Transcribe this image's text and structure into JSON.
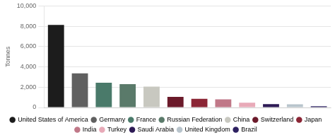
{
  "chart_data": {
    "type": "bar",
    "categories": [
      "United States of America",
      "Germany",
      "France",
      "Russian Federation",
      "China",
      "Switzerland",
      "Japan",
      "India",
      "Turkey",
      "Saudi Arabia",
      "United Kingdom",
      "Brazil"
    ],
    "values": [
      8133,
      3352,
      2436,
      2299,
      2050,
      1040,
      846,
      800,
      471,
      323,
      310,
      130
    ],
    "colors": [
      "#1c1c1c",
      "#606060",
      "#4a7a6a",
      "#5a7a6a",
      "#c8c8c0",
      "#6b1a2a",
      "#8b2535",
      "#c07888",
      "#e8aab8",
      "#2d1a55",
      "#b8c4cc",
      "#2d2060"
    ],
    "ylabel": "Tonnes",
    "ylim": [
      0,
      10000
    ],
    "yticks": [
      0,
      {
        "value": 2000,
        "label": "2,000"
      },
      {
        "value": 4000,
        "label": "4,000"
      },
      {
        "value": 6000,
        "label": "6,000"
      },
      {
        "value": 8000,
        "label": "8,000"
      },
      {
        "value": 10000,
        "label": "10,000"
      }
    ],
    "grid": true,
    "legend": "bottom",
    "tick_labels": "y"
  }
}
